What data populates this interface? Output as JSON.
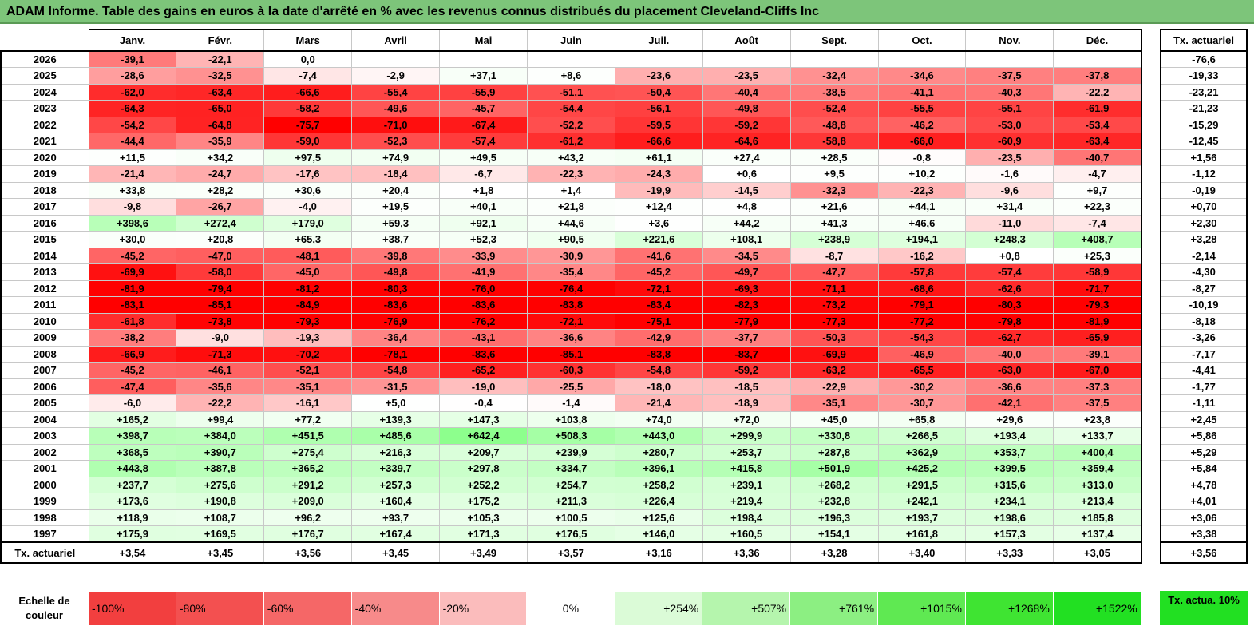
{
  "title": "ADAM Informe. Table des gains en euros à la date d'arrêté en % avec les revenus connus distribués du placement Cleveland-Cliffs Inc",
  "months": [
    "Janv.",
    "Févr.",
    "Mars",
    "Avril",
    "Mai",
    "Juin",
    "Juil.",
    "Août",
    "Sept.",
    "Oct.",
    "Nov.",
    "Déc."
  ],
  "side_header": "Tx. actuariel",
  "rows": [
    {
      "year": "2026",
      "vals": [
        "-39,1",
        "-22,1",
        "0,0",
        "",
        "",
        "",
        "",
        "",
        "",
        "",
        "",
        ""
      ],
      "rate": "-76,6"
    },
    {
      "year": "2025",
      "vals": [
        "-28,6",
        "-32,5",
        "-7,4",
        "-2,9",
        "+37,1",
        "+8,6",
        "-23,6",
        "-23,5",
        "-32,4",
        "-34,6",
        "-37,5",
        "-37,8"
      ],
      "rate": "-19,33"
    },
    {
      "year": "2024",
      "vals": [
        "-62,0",
        "-63,4",
        "-66,6",
        "-55,4",
        "-55,9",
        "-51,1",
        "-50,4",
        "-40,4",
        "-38,5",
        "-41,1",
        "-40,3",
        "-22,2"
      ],
      "rate": "-23,21"
    },
    {
      "year": "2023",
      "vals": [
        "-64,3",
        "-65,0",
        "-58,2",
        "-49,6",
        "-45,7",
        "-54,4",
        "-56,1",
        "-49,8",
        "-52,4",
        "-55,5",
        "-55,1",
        "-61,9"
      ],
      "rate": "-21,23"
    },
    {
      "year": "2022",
      "vals": [
        "-54,2",
        "-64,8",
        "-75,7",
        "-71,0",
        "-67,4",
        "-52,2",
        "-59,5",
        "-59,2",
        "-48,8",
        "-46,2",
        "-53,0",
        "-53,4"
      ],
      "rate": "-15,29"
    },
    {
      "year": "2021",
      "vals": [
        "-44,4",
        "-35,9",
        "-59,0",
        "-52,3",
        "-57,4",
        "-61,2",
        "-66,6",
        "-64,6",
        "-58,8",
        "-66,0",
        "-60,9",
        "-63,4"
      ],
      "rate": "-12,45"
    },
    {
      "year": "2020",
      "vals": [
        "+11,5",
        "+34,2",
        "+97,5",
        "+74,9",
        "+49,5",
        "+43,2",
        "+61,1",
        "+27,4",
        "+28,5",
        "-0,8",
        "-23,5",
        "-40,7"
      ],
      "rate": "+1,56"
    },
    {
      "year": "2019",
      "vals": [
        "-21,4",
        "-24,7",
        "-17,6",
        "-18,4",
        "-6,7",
        "-22,3",
        "-24,3",
        "+0,6",
        "+9,5",
        "+10,2",
        "-1,6",
        "-4,7"
      ],
      "rate": "-1,12"
    },
    {
      "year": "2018",
      "vals": [
        "+33,8",
        "+28,2",
        "+30,6",
        "+20,4",
        "+1,8",
        "+1,4",
        "-19,9",
        "-14,5",
        "-32,3",
        "-22,3",
        "-9,6",
        "+9,7"
      ],
      "rate": "-0,19"
    },
    {
      "year": "2017",
      "vals": [
        "-9,8",
        "-26,7",
        "-4,0",
        "+19,5",
        "+40,1",
        "+21,8",
        "+12,4",
        "+4,8",
        "+21,6",
        "+44,1",
        "+31,4",
        "+22,3"
      ],
      "rate": "+0,70"
    },
    {
      "year": "2016",
      "vals": [
        "+398,6",
        "+272,4",
        "+179,0",
        "+59,3",
        "+92,1",
        "+44,6",
        "+3,6",
        "+44,2",
        "+41,3",
        "+46,6",
        "-11,0",
        "-7,4"
      ],
      "rate": "+2,30"
    },
    {
      "year": "2015",
      "vals": [
        "+30,0",
        "+20,8",
        "+65,3",
        "+38,7",
        "+52,3",
        "+90,5",
        "+221,6",
        "+108,1",
        "+238,9",
        "+194,1",
        "+248,3",
        "+408,7"
      ],
      "rate": "+3,28"
    },
    {
      "year": "2014",
      "vals": [
        "-45,2",
        "-47,0",
        "-48,1",
        "-39,8",
        "-33,9",
        "-30,9",
        "-41,6",
        "-34,5",
        "-8,7",
        "-16,2",
        "+0,8",
        "+25,3"
      ],
      "rate": "-2,14"
    },
    {
      "year": "2013",
      "vals": [
        "-69,9",
        "-58,0",
        "-45,0",
        "-49,8",
        "-41,9",
        "-35,4",
        "-45,2",
        "-49,7",
        "-47,7",
        "-57,8",
        "-57,4",
        "-58,9"
      ],
      "rate": "-4,30"
    },
    {
      "year": "2012",
      "vals": [
        "-81,9",
        "-79,4",
        "-81,2",
        "-80,3",
        "-76,0",
        "-76,4",
        "-72,1",
        "-69,3",
        "-71,1",
        "-68,6",
        "-62,6",
        "-71,7"
      ],
      "rate": "-8,27"
    },
    {
      "year": "2011",
      "vals": [
        "-83,1",
        "-85,1",
        "-84,9",
        "-83,6",
        "-83,6",
        "-83,8",
        "-83,4",
        "-82,3",
        "-73,2",
        "-79,1",
        "-80,3",
        "-79,3"
      ],
      "rate": "-10,19"
    },
    {
      "year": "2010",
      "vals": [
        "-61,8",
        "-73,8",
        "-79,3",
        "-76,9",
        "-76,2",
        "-72,1",
        "-75,1",
        "-77,9",
        "-77,3",
        "-77,2",
        "-79,8",
        "-81,9"
      ],
      "rate": "-8,18"
    },
    {
      "year": "2009",
      "vals": [
        "-38,2",
        "-9,0",
        "-19,3",
        "-36,4",
        "-43,1",
        "-36,6",
        "-42,9",
        "-37,7",
        "-50,3",
        "-54,3",
        "-62,7",
        "-65,9"
      ],
      "rate": "-3,26"
    },
    {
      "year": "2008",
      "vals": [
        "-66,9",
        "-71,3",
        "-70,2",
        "-78,1",
        "-83,6",
        "-85,1",
        "-83,8",
        "-83,7",
        "-69,9",
        "-46,9",
        "-40,0",
        "-39,1"
      ],
      "rate": "-7,17"
    },
    {
      "year": "2007",
      "vals": [
        "-45,2",
        "-46,1",
        "-52,1",
        "-54,8",
        "-65,2",
        "-60,3",
        "-54,8",
        "-59,2",
        "-63,2",
        "-65,5",
        "-63,0",
        "-67,0"
      ],
      "rate": "-4,41"
    },
    {
      "year": "2006",
      "vals": [
        "-47,4",
        "-35,6",
        "-35,1",
        "-31,5",
        "-19,0",
        "-25,5",
        "-18,0",
        "-18,5",
        "-22,9",
        "-30,2",
        "-36,6",
        "-37,3"
      ],
      "rate": "-1,77"
    },
    {
      "year": "2005",
      "vals": [
        "-6,0",
        "-22,2",
        "-16,1",
        "+5,0",
        "-0,4",
        "-1,4",
        "-21,4",
        "-18,9",
        "-35,1",
        "-30,7",
        "-42,1",
        "-37,5"
      ],
      "rate": "-1,11"
    },
    {
      "year": "2004",
      "vals": [
        "+165,2",
        "+99,4",
        "+77,2",
        "+139,3",
        "+147,3",
        "+103,8",
        "+74,0",
        "+72,0",
        "+45,0",
        "+65,8",
        "+29,6",
        "+23,8"
      ],
      "rate": "+2,45"
    },
    {
      "year": "2003",
      "vals": [
        "+398,7",
        "+384,0",
        "+451,5",
        "+485,6",
        "+642,4",
        "+508,3",
        "+443,0",
        "+299,9",
        "+330,8",
        "+266,5",
        "+193,4",
        "+133,7"
      ],
      "rate": "+5,86"
    },
    {
      "year": "2002",
      "vals": [
        "+368,5",
        "+390,7",
        "+275,4",
        "+216,3",
        "+209,7",
        "+239,9",
        "+280,7",
        "+253,7",
        "+287,8",
        "+362,9",
        "+353,7",
        "+400,4"
      ],
      "rate": "+5,29"
    },
    {
      "year": "2001",
      "vals": [
        "+443,8",
        "+387,8",
        "+365,2",
        "+339,7",
        "+297,8",
        "+334,7",
        "+396,1",
        "+415,8",
        "+501,9",
        "+425,2",
        "+399,5",
        "+359,4"
      ],
      "rate": "+5,84"
    },
    {
      "year": "2000",
      "vals": [
        "+237,7",
        "+275,6",
        "+291,2",
        "+257,3",
        "+252,2",
        "+254,7",
        "+258,2",
        "+239,1",
        "+268,2",
        "+291,5",
        "+315,6",
        "+313,0"
      ],
      "rate": "+4,78"
    },
    {
      "year": "1999",
      "vals": [
        "+173,6",
        "+190,8",
        "+209,0",
        "+160,4",
        "+175,2",
        "+211,3",
        "+226,4",
        "+219,4",
        "+232,8",
        "+242,1",
        "+234,1",
        "+213,4"
      ],
      "rate": "+4,01"
    },
    {
      "year": "1998",
      "vals": [
        "+118,9",
        "+108,7",
        "+96,2",
        "+93,7",
        "+105,3",
        "+100,5",
        "+125,6",
        "+198,4",
        "+196,3",
        "+193,7",
        "+198,6",
        "+185,8"
      ],
      "rate": "+3,06"
    },
    {
      "year": "1997",
      "vals": [
        "+175,9",
        "+169,5",
        "+176,7",
        "+167,4",
        "+171,3",
        "+176,5",
        "+146,0",
        "+160,5",
        "+154,1",
        "+161,8",
        "+157,3",
        "+137,4"
      ],
      "rate": "+3,38"
    }
  ],
  "summary": {
    "label": "Tx. actuariel",
    "vals": [
      "+3,54",
      "+3,45",
      "+3,56",
      "+3,45",
      "+3,49",
      "+3,57",
      "+3,16",
      "+3,36",
      "+3,28",
      "+3,40",
      "+3,33",
      "+3,05"
    ],
    "rate": "+3,56"
  },
  "scale": {
    "label": "Echelle de couleur",
    "steps": [
      {
        "text": "-100%",
        "color": "#f23f3f"
      },
      {
        "text": "-80%",
        "color": "#f35050"
      },
      {
        "text": "-60%",
        "color": "#f56767"
      },
      {
        "text": "-40%",
        "color": "#f78a8a"
      },
      {
        "text": "-20%",
        "color": "#fbbcbc"
      },
      {
        "text": "0%",
        "color": "#ffffff"
      },
      {
        "text": "+254%",
        "color": "#dbfbd7"
      },
      {
        "text": "+507%",
        "color": "#b5f5ad"
      },
      {
        "text": "+761%",
        "color": "#8cef82"
      },
      {
        "text": "+1015%",
        "color": "#5fe952"
      },
      {
        "text": "+1268%",
        "color": "#3fe432"
      },
      {
        "text": "+1522%",
        "color": "#22e022"
      }
    ],
    "side_label": "Tx. actua. 10%",
    "side_color": "#22e022"
  }
}
